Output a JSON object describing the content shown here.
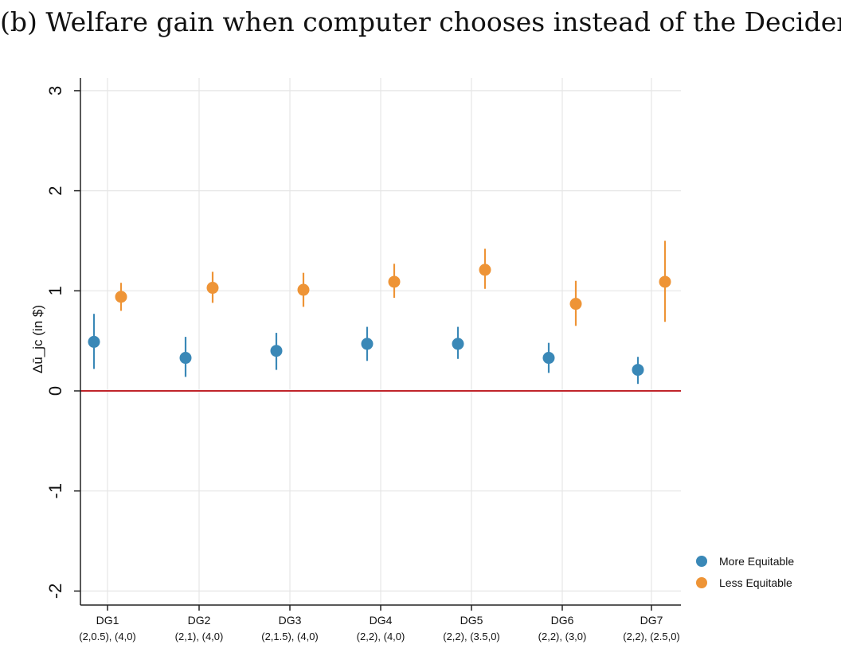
{
  "colors": {
    "more_equitable": "#3a88b7",
    "less_equitable": "#ee9436",
    "zero_line": "#c0252b",
    "grid": "#e6e6e6",
    "axis": "#222222"
  },
  "chart_data": {
    "type": "scatter",
    "title": "(b) Welfare gain when computer chooses instead of the Decider",
    "ylabel": "Δū_jc (in $)",
    "ylim": [
      -2.15,
      3.15
    ],
    "yticks": [
      -2,
      -1,
      0,
      1,
      2,
      3
    ],
    "ytick_labels": [
      "-2",
      "-1",
      "0",
      "1",
      "2",
      "3"
    ],
    "reference_line": 0,
    "grid": true,
    "legend_position": "bottom-right",
    "categories": [
      {
        "label": "DG1",
        "sub": "(2,0.5), (4,0)"
      },
      {
        "label": "DG2",
        "sub": "(2,1), (4,0)"
      },
      {
        "label": "DG3",
        "sub": "(2,1.5), (4,0)"
      },
      {
        "label": "DG4",
        "sub": "(2,2), (4,0)"
      },
      {
        "label": "DG5",
        "sub": "(2,2), (3.5,0)"
      },
      {
        "label": "DG6",
        "sub": "(2,2), (3,0)"
      },
      {
        "label": "DG7",
        "sub": "(2,2), (2.5,0)"
      }
    ],
    "series": [
      {
        "name": "More Equitable",
        "color_key": "more_equitable",
        "values": [
          0.49,
          0.33,
          0.4,
          0.47,
          0.47,
          0.33,
          0.21
        ],
        "ci_low": [
          0.22,
          0.14,
          0.21,
          0.3,
          0.32,
          0.18,
          0.07
        ],
        "ci_high": [
          0.77,
          0.54,
          0.58,
          0.64,
          0.64,
          0.48,
          0.34
        ]
      },
      {
        "name": "Less Equitable",
        "color_key": "less_equitable",
        "values": [
          0.94,
          1.03,
          1.01,
          1.09,
          1.21,
          0.87,
          1.09
        ],
        "ci_low": [
          0.8,
          0.88,
          0.84,
          0.93,
          1.02,
          0.65,
          0.69
        ],
        "ci_high": [
          1.08,
          1.19,
          1.18,
          1.27,
          1.42,
          1.1,
          1.5
        ]
      }
    ]
  }
}
